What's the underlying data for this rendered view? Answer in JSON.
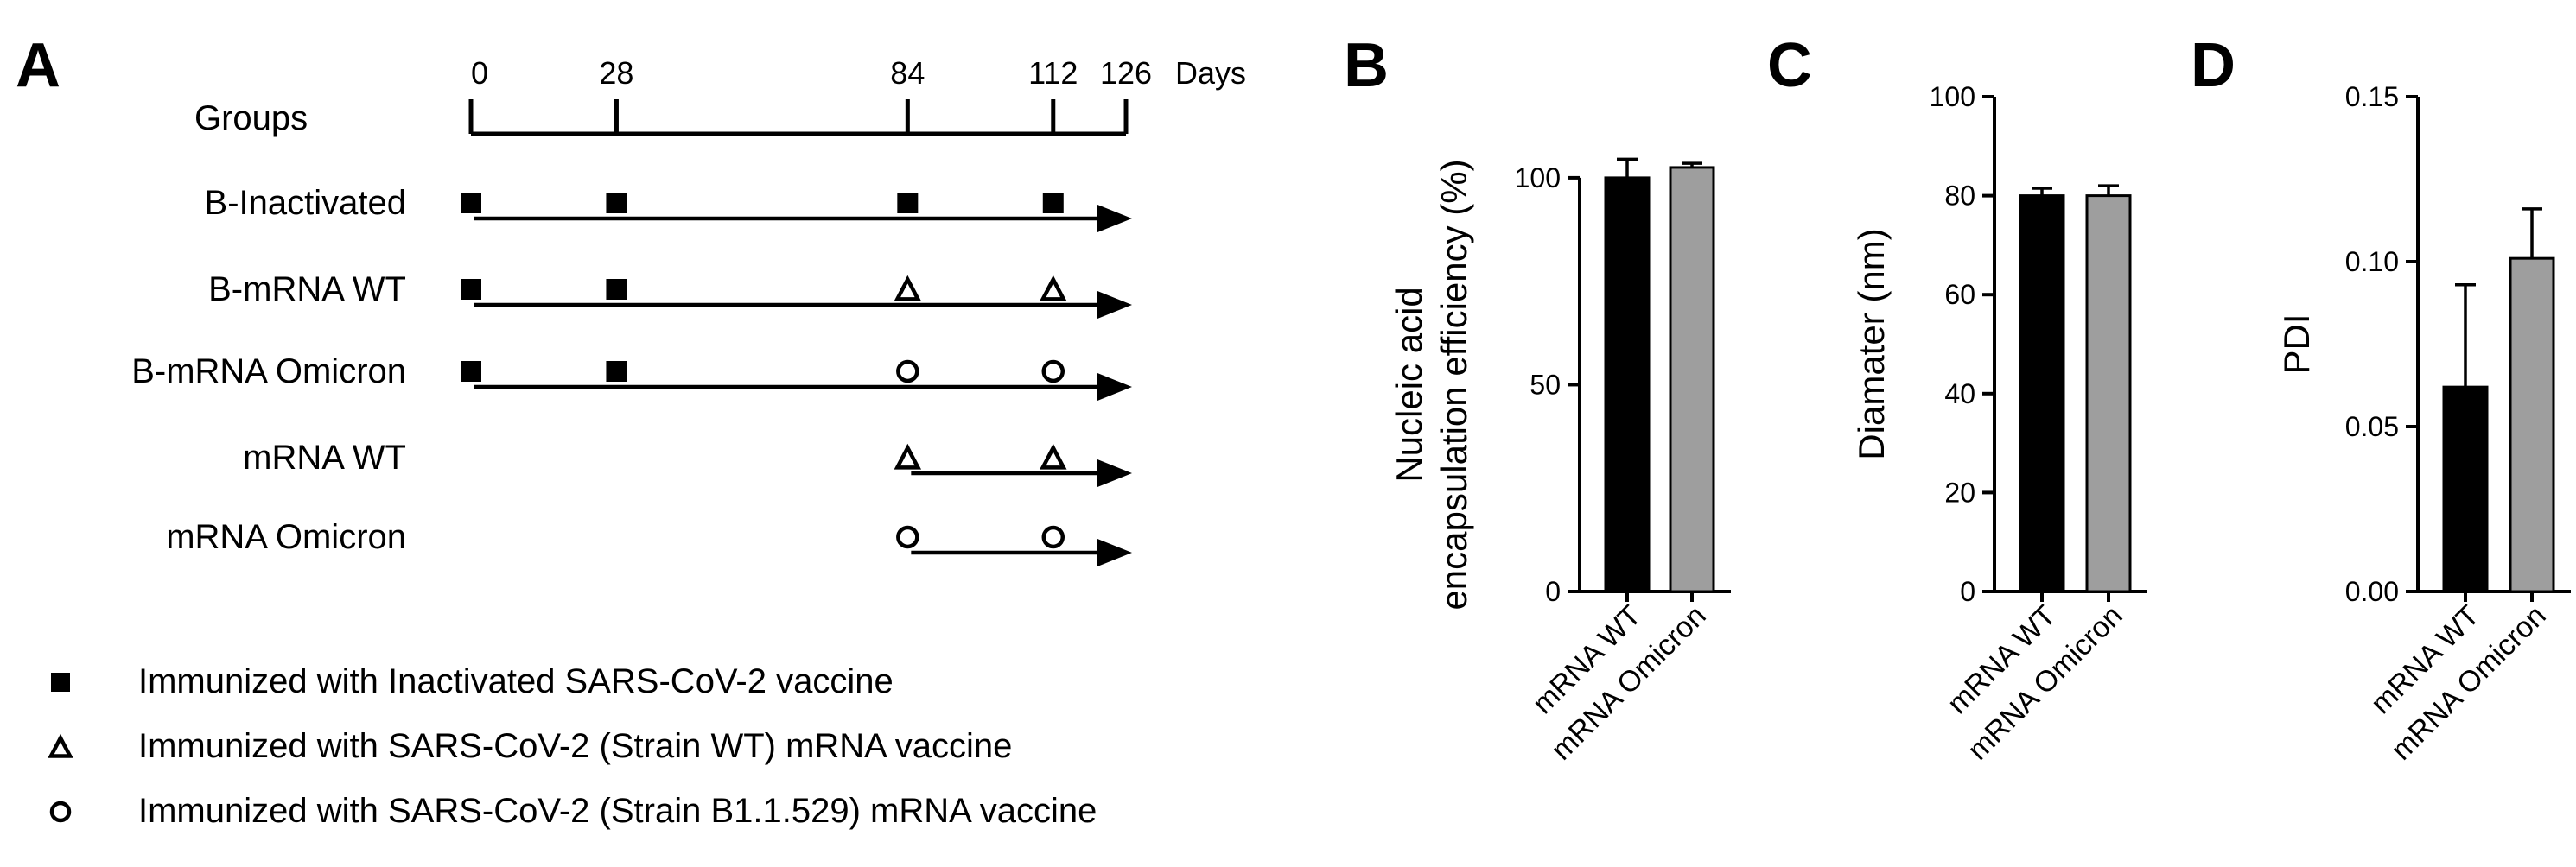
{
  "panels": {
    "a": "A",
    "b": "B",
    "c": "C",
    "d": "D"
  },
  "timeline": {
    "groups_header": "Groups",
    "days_unit": "Days",
    "days": [
      "0",
      "28",
      "84",
      "112",
      "126"
    ],
    "day_values": [
      0,
      28,
      84,
      112,
      126
    ],
    "groups": [
      {
        "label": "B-Inactivated",
        "start_day": 0,
        "doses": [
          {
            "day": 0,
            "mark": "square"
          },
          {
            "day": 28,
            "mark": "square"
          },
          {
            "day": 84,
            "mark": "square"
          },
          {
            "day": 112,
            "mark": "square"
          }
        ]
      },
      {
        "label": "B-mRNA WT",
        "start_day": 0,
        "doses": [
          {
            "day": 0,
            "mark": "square"
          },
          {
            "day": 28,
            "mark": "square"
          },
          {
            "day": 84,
            "mark": "triangle"
          },
          {
            "day": 112,
            "mark": "triangle"
          }
        ]
      },
      {
        "label": "B-mRNA Omicron",
        "start_day": 0,
        "doses": [
          {
            "day": 0,
            "mark": "square"
          },
          {
            "day": 28,
            "mark": "square"
          },
          {
            "day": 84,
            "mark": "circle"
          },
          {
            "day": 112,
            "mark": "circle"
          }
        ]
      },
      {
        "label": "mRNA WT",
        "start_day": 84,
        "doses": [
          {
            "day": 84,
            "mark": "triangle"
          },
          {
            "day": 112,
            "mark": "triangle"
          }
        ]
      },
      {
        "label": "mRNA Omicron",
        "start_day": 84,
        "doses": [
          {
            "day": 84,
            "mark": "circle"
          },
          {
            "day": 112,
            "mark": "circle"
          }
        ]
      }
    ],
    "legend": [
      {
        "mark": "square",
        "label": "Immunized with Inactivated SARS-CoV-2 vaccine"
      },
      {
        "mark": "triangle",
        "label": "Immunized with SARS-CoV-2 (Strain WT) mRNA vaccine"
      },
      {
        "mark": "circle",
        "label": "Immunized with SARS-CoV-2 (Strain B1.1.529) mRNA vaccine"
      }
    ]
  },
  "chart_data": [
    {
      "type": "bar",
      "categories": [
        "mRNA WT",
        "mRNA Omicron"
      ],
      "values": [
        100,
        102.5
      ],
      "errors": [
        4.5,
        1.0
      ],
      "colors": [
        "#000000",
        "#9e9e9e"
      ],
      "ylabel_lines": [
        "Nucleic acid",
        "encapsulation efficiency (%)"
      ],
      "ylim": [
        0,
        110
      ],
      "yticks": [
        0,
        50,
        100
      ],
      "ytick_labels": [
        "0",
        "50",
        "100"
      ]
    },
    {
      "type": "bar",
      "categories": [
        "mRNA WT",
        "mRNA Omicron"
      ],
      "values": [
        80,
        80
      ],
      "errors": [
        1.5,
        2.0
      ],
      "colors": [
        "#000000",
        "#9e9e9e"
      ],
      "ylabel_lines": [
        "Diamater (nm)"
      ],
      "ylim": [
        0,
        100
      ],
      "yticks": [
        0,
        20,
        40,
        60,
        80,
        100
      ],
      "ytick_labels": [
        "0",
        "20",
        "40",
        "60",
        "80",
        "100"
      ]
    },
    {
      "type": "bar",
      "categories": [
        "mRNA WT",
        "mRNA Omicron"
      ],
      "values": [
        0.062,
        0.101
      ],
      "errors": [
        0.031,
        0.015
      ],
      "colors": [
        "#000000",
        "#9e9e9e"
      ],
      "ylabel_lines": [
        "PDI"
      ],
      "ylim": [
        0,
        0.15
      ],
      "yticks": [
        0,
        0.05,
        0.1,
        0.15
      ],
      "ytick_labels": [
        "0.00",
        "0.05",
        "0.10",
        "0.15"
      ]
    }
  ]
}
